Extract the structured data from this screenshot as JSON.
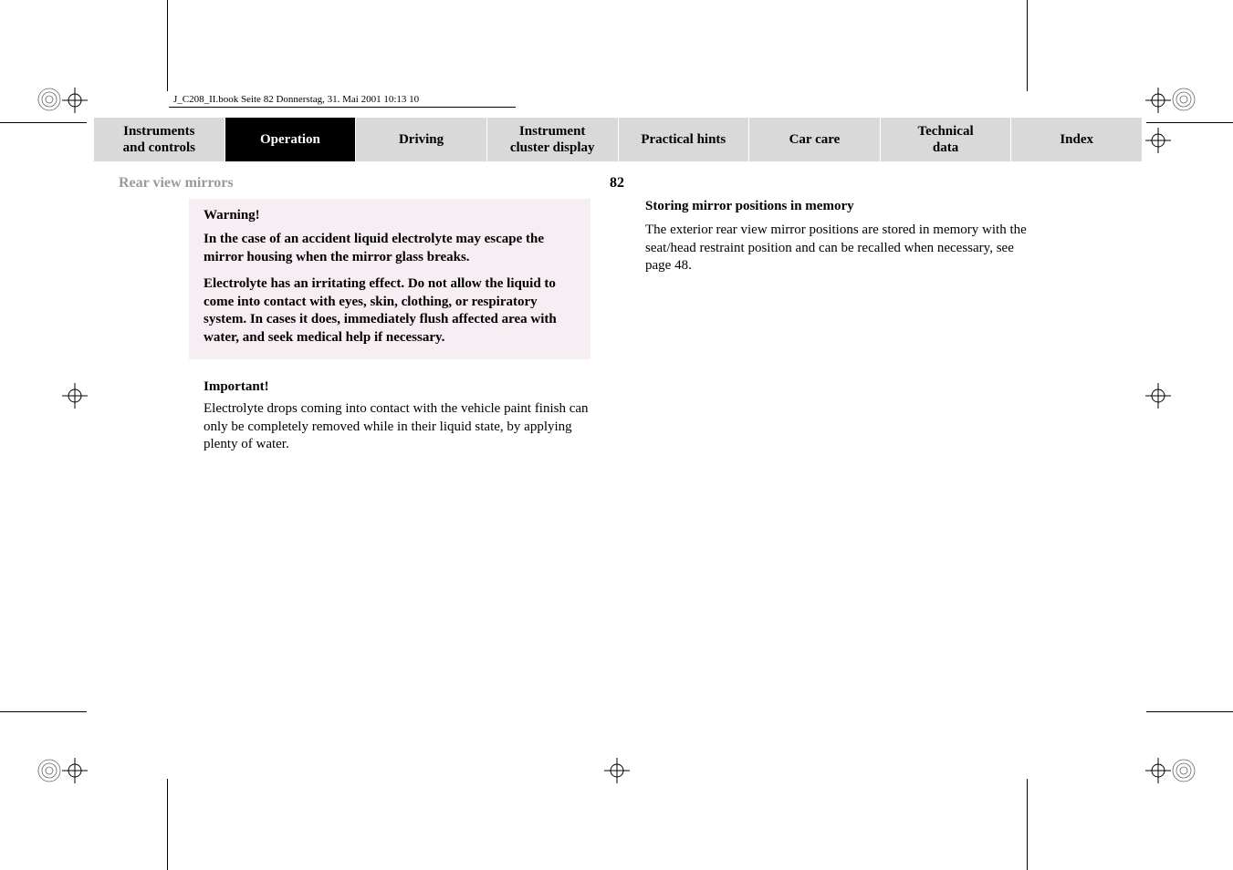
{
  "header": {
    "running_head": "J_C208_II.book  Seite 82  Donnerstag, 31. Mai 2001  10:13 10"
  },
  "nav": {
    "items": [
      {
        "line1": "Instruments",
        "line2": "and controls",
        "active": false
      },
      {
        "line1": "Operation",
        "line2": "",
        "active": true
      },
      {
        "line1": "Driving",
        "line2": "",
        "active": false
      },
      {
        "line1": "Instrument",
        "line2": "cluster display",
        "active": false
      },
      {
        "line1": "Practical hints",
        "line2": "",
        "active": false
      },
      {
        "line1": "Car care",
        "line2": "",
        "active": false
      },
      {
        "line1": "Technical",
        "line2": "data",
        "active": false
      },
      {
        "line1": "Index",
        "line2": "",
        "active": false
      }
    ]
  },
  "section": {
    "title": "Rear view mirrors",
    "page": "82"
  },
  "left": {
    "warning_label": "Warning!",
    "warning_p1": "In the case of an accident liquid electrolyte may escape the mirror housing when the mirror glass breaks.",
    "warning_p2": "Electrolyte has an irritating effect. Do not allow the liquid to come into contact with eyes, skin, clothing, or respiratory system. In cases it does, immediately flush affected area with water, and seek medical help if necessary.",
    "important_label": "Important!",
    "important_body": "Electrolyte drops coming into contact with the vehicle paint finish can only be completely removed while in their liquid state, by applying plenty of water."
  },
  "right": {
    "title": "Storing mirror positions in memory",
    "body": "The exterior rear view mirror positions are stored in memory with the seat/head restraint position and can be recalled when necessary, see page 48."
  },
  "style": {
    "nav_bg": "#d9d9d9",
    "nav_active_bg": "#000000",
    "warning_bg": "#f7eef4",
    "muted_text": "#9a9a9a"
  }
}
